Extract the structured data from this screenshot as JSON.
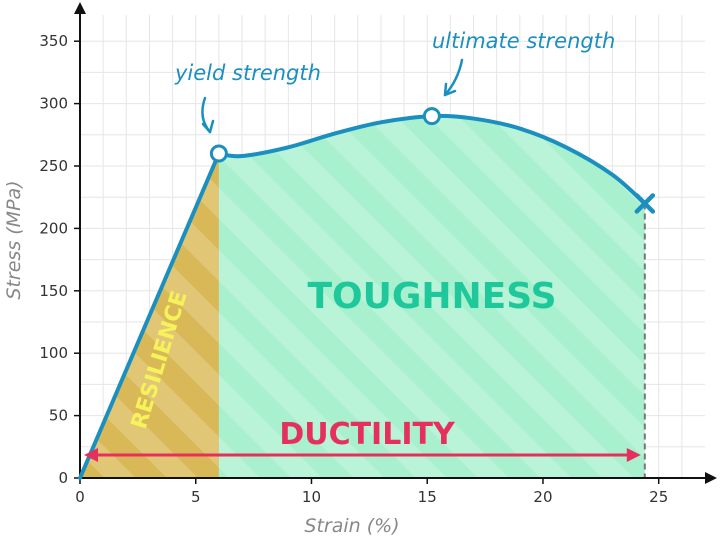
{
  "chart_data": {
    "type": "line",
    "title": "",
    "xlabel": "Strain (%)",
    "ylabel": "Stress (MPa)",
    "xlim": [
      0,
      27
    ],
    "ylim": [
      0,
      375
    ],
    "x_ticks": [
      "0",
      "5",
      "10",
      "15",
      "20",
      "25"
    ],
    "y_ticks": [
      "0",
      "50",
      "100",
      "150",
      "200",
      "250",
      "300",
      "350"
    ],
    "grid": true,
    "series": [
      {
        "x": [
          0,
          6,
          7,
          9,
          11,
          13,
          15.2,
          17,
          19,
          21,
          23,
          24.4
        ],
        "y": [
          0,
          260,
          258,
          265,
          276,
          285,
          290,
          288,
          280,
          265,
          243,
          220
        ]
      }
    ],
    "points": {
      "yield": {
        "x": 6,
        "y": 260,
        "label": "yield strength"
      },
      "ultimate": {
        "x": 15.2,
        "y": 290,
        "label": "ultimate strength"
      },
      "fracture": {
        "x": 24.4,
        "y": 220
      }
    },
    "regions": {
      "resilience": {
        "label": "RESILIENCE",
        "x_range": [
          0,
          6
        ]
      },
      "toughness": {
        "label": "TOUGHNESS",
        "x_range": [
          6,
          24.4
        ]
      },
      "ductility": {
        "label": "DUCTILITY",
        "x_range": [
          0,
          24.4
        ]
      }
    },
    "colors": {
      "curve": "#1b8fbf",
      "resilience_fill": "#d9b957",
      "resilience_text": "#f5f25a",
      "toughness_fill": "#a9f0cf",
      "toughness_text": "#1fc89a",
      "ductility": "#e5305e",
      "grid": "#e6e6e6"
    }
  }
}
